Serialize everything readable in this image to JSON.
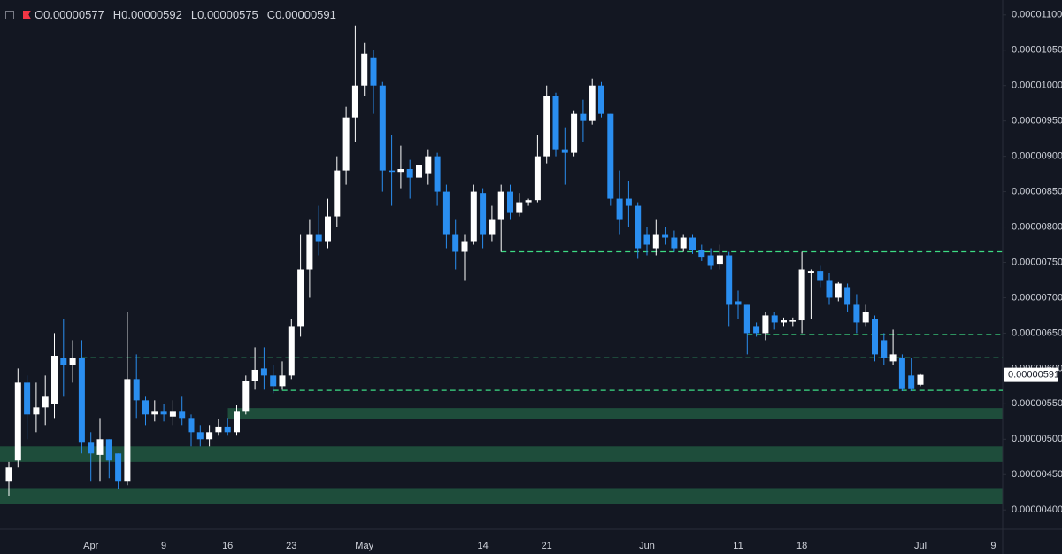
{
  "chart_data": {
    "type": "candlestick",
    "legend_values": [
      "O0.00000577",
      "H0.00000592",
      "L0.00000575",
      "C0.00000591"
    ],
    "last_price": {
      "value": 5.91e-06,
      "label": "0.00000591"
    },
    "categories": [
      null,
      null,
      null,
      null,
      null,
      null,
      null,
      null,
      null,
      "Apr",
      null,
      null,
      null,
      null,
      null,
      null,
      null,
      "9",
      null,
      null,
      null,
      null,
      null,
      null,
      "16",
      null,
      null,
      null,
      null,
      null,
      null,
      "23",
      null,
      null,
      null,
      null,
      null,
      null,
      null,
      "May",
      null,
      null,
      null,
      null,
      null,
      null,
      null,
      null,
      null,
      null,
      null,
      null,
      "14",
      null,
      null,
      null,
      null,
      null,
      null,
      "21",
      null,
      null,
      null,
      null,
      null,
      null,
      null,
      null,
      null,
      null,
      "Jun",
      null,
      null,
      null,
      null,
      null,
      null,
      null,
      null,
      null,
      "11",
      null,
      null,
      null,
      null,
      null,
      null,
      "18",
      null,
      null,
      null,
      null,
      null,
      null,
      null,
      null,
      null,
      null,
      null,
      null,
      "Jul",
      null,
      null,
      null,
      null,
      null,
      null,
      null,
      "9",
      null
    ],
    "open": [
      4.4e-06,
      4.7e-06,
      5.8e-06,
      5.35e-06,
      5.45e-06,
      5.5e-06,
      6.15e-06,
      6.05e-06,
      6.15e-06,
      4.95e-06,
      4.78e-06,
      5e-06,
      4.8e-06,
      4.4e-06,
      5.85e-06,
      5.55e-06,
      5.35e-06,
      5.4e-06,
      5.32e-06,
      5.4e-06,
      5.3e-06,
      5.1e-06,
      5e-06,
      5.1e-06,
      5.18e-06,
      5.1e-06,
      5.4e-06,
      5.82e-06,
      6e-06,
      5.9e-06,
      5.75e-06,
      5.9e-06,
      6.6e-06,
      7.4e-06,
      7.9e-06,
      7.8e-06,
      8.15e-06,
      8.8e-06,
      9.55e-06,
      1e-05,
      1.04e-05,
      1e-05,
      8.8e-06,
      8.78e-06,
      8.82e-06,
      8.7e-06,
      8.75e-06,
      9e-06,
      8.5e-06,
      7.9e-06,
      7.65e-06,
      7.8e-06,
      8.48e-06,
      7.9e-06,
      8.1e-06,
      8.5e-06,
      8.2e-06,
      8.35e-06,
      8.38e-06,
      9e-06,
      9.85e-06,
      9.1e-06,
      9.05e-06,
      9.6e-06,
      9.5e-06,
      1e-05,
      9.6e-06,
      8.4e-06,
      8.4e-06,
      8.3e-06,
      7.9e-06,
      7.7e-06,
      7.9e-06,
      7.85e-06,
      7.7e-06,
      7.85e-06,
      7.68e-06,
      7.6e-06,
      7.48e-06,
      7.6e-06,
      6.95e-06,
      6.9e-06,
      6.6e-06,
      6.5e-06,
      6.75e-06,
      6.65e-06,
      6.66e-06,
      6.68e-06,
      7.35e-06,
      7.38e-06,
      7.25e-06,
      7e-06,
      7.15e-06,
      6.9e-06,
      6.65e-06,
      6.7e-06,
      6.4e-06,
      6.1e-06,
      6.15e-06,
      5.9e-06,
      5.77e-06,
      null,
      null,
      null,
      null,
      null,
      null,
      null,
      null,
      null
    ],
    "high": [
      4.68e-06,
      6e-06,
      5.9e-06,
      5.8e-06,
      5.9e-06,
      6.5e-06,
      6.7e-06,
      6.4e-06,
      6.4e-06,
      5.1e-06,
      5.3e-06,
      5e-06,
      4.8e-06,
      6.8e-06,
      6.2e-06,
      5.6e-06,
      5.55e-06,
      5.5e-06,
      5.55e-06,
      5.6e-06,
      5.35e-06,
      5.2e-06,
      5.2e-06,
      5.28e-06,
      5.3e-06,
      5.48e-06,
      5.9e-06,
      6.3e-06,
      6.3e-06,
      6.05e-06,
      6.1e-06,
      6.7e-06,
      7.9e-06,
      8.1e-06,
      8.3e-06,
      8.4e-06,
      9e-06,
      9.7e-06,
      1.085e-05,
      1.06e-05,
      1.05e-05,
      1.005e-05,
      9.3e-06,
      9.15e-06,
      8.95e-06,
      8.95e-06,
      9.1e-06,
      9.05e-06,
      8.6e-06,
      8.1e-06,
      7.9e-06,
      8.6e-06,
      8.55e-06,
      8.3e-06,
      8.6e-06,
      8.6e-06,
      8.48e-06,
      8.4e-06,
      9.3e-06,
      1e-05,
      9.9e-06,
      9.4e-06,
      9.65e-06,
      9.8e-06,
      1.01e-05,
      1.005e-05,
      9.6e-06,
      8.8e-06,
      8.65e-06,
      8.35e-06,
      8e-06,
      8.1e-06,
      8e-06,
      7.95e-06,
      7.9e-06,
      7.9e-06,
      7.75e-06,
      7.7e-06,
      7.75e-06,
      7.65e-06,
      7.1e-06,
      6.9e-06,
      6.65e-06,
      6.8e-06,
      6.8e-06,
      6.72e-06,
      6.72e-06,
      7.65e-06,
      7.4e-06,
      7.45e-06,
      7.35e-06,
      7.22e-06,
      7.2e-06,
      7.05e-06,
      6.9e-06,
      6.75e-06,
      6.5e-06,
      6.55e-06,
      6.2e-06,
      6.15e-06,
      5.92e-06,
      null,
      null,
      null,
      null,
      null,
      null,
      null,
      null,
      null
    ],
    "low": [
      4.2e-06,
      4.6e-06,
      5e-06,
      5.1e-06,
      5.2e-06,
      5.3e-06,
      5.6e-06,
      5.8e-06,
      4.8e-06,
      4.4e-06,
      4.4e-06,
      4.45e-06,
      4.3e-06,
      4.35e-06,
      5.3e-06,
      5.2e-06,
      5.25e-06,
      5.25e-06,
      5.2e-06,
      5.2e-06,
      4.9e-06,
      4.9e-06,
      4.9e-06,
      5.05e-06,
      5.05e-06,
      5.05e-06,
      5.35e-06,
      5.7e-06,
      5.7e-06,
      5.65e-06,
      5.7e-06,
      5.85e-06,
      6.45e-06,
      7e-06,
      7.6e-06,
      7.7e-06,
      8e-06,
      8.6e-06,
      9.2e-06,
      9.85e-06,
      9.6e-06,
      8.5e-06,
      8.3e-06,
      8.55e-06,
      8.4e-06,
      8.5e-06,
      8.6e-06,
      8.3e-06,
      7.7e-06,
      7.4e-06,
      7.25e-06,
      7.75e-06,
      7.7e-06,
      7.8e-06,
      7.65e-06,
      8.1e-06,
      8.15e-06,
      8.3e-06,
      8.35e-06,
      8.9e-06,
      9e-06,
      8.6e-06,
      9e-06,
      9.2e-06,
      9.45e-06,
      9.55e-06,
      8.3e-06,
      7.9e-06,
      8e-06,
      7.55e-06,
      7.6e-06,
      7.6e-06,
      7.75e-06,
      7.65e-06,
      7.65e-06,
      7.62e-06,
      7.52e-06,
      7.4e-06,
      7.4e-06,
      6.6e-06,
      6.7e-06,
      6.2e-06,
      6.45e-06,
      6.4e-06,
      6.55e-06,
      6.6e-06,
      6.6e-06,
      6.5e-06,
      6.7e-06,
      7.15e-06,
      6.9e-06,
      6.95e-06,
      6.8e-06,
      6.5e-06,
      6.6e-06,
      6.1e-06,
      6.05e-06,
      6.05e-06,
      5.68e-06,
      5.68e-06,
      5.75e-06,
      null,
      null,
      null,
      null,
      null,
      null,
      null,
      null,
      null
    ],
    "close": [
      4.6e-06,
      5.8e-06,
      5.35e-06,
      5.45e-06,
      5.6e-06,
      6.18e-06,
      6.05e-06,
      6.15e-06,
      4.95e-06,
      4.8e-06,
      5e-06,
      4.7e-06,
      4.4e-06,
      5.85e-06,
      5.55e-06,
      5.35e-06,
      5.4e-06,
      5.35e-06,
      5.4e-06,
      5.3e-06,
      5.1e-06,
      5e-06,
      5.1e-06,
      5.18e-06,
      5.1e-06,
      5.4e-06,
      5.82e-06,
      5.98e-06,
      5.9e-06,
      5.75e-06,
      5.9e-06,
      6.6e-06,
      7.4e-06,
      7.9e-06,
      7.8e-06,
      8.15e-06,
      8.8e-06,
      9.55e-06,
      1e-05,
      1.045e-05,
      1e-05,
      8.8e-06,
      8.78e-06,
      8.82e-06,
      8.7e-06,
      8.88e-06,
      9e-06,
      8.5e-06,
      7.9e-06,
      7.65e-06,
      7.8e-06,
      8.5e-06,
      7.9e-06,
      8.1e-06,
      8.5e-06,
      8.2e-06,
      8.35e-06,
      8.38e-06,
      9e-06,
      9.85e-06,
      9.1e-06,
      9.05e-06,
      9.6e-06,
      9.5e-06,
      1e-05,
      9.6e-06,
      8.4e-06,
      8.1e-06,
      8.3e-06,
      7.7e-06,
      7.75e-06,
      7.9e-06,
      7.85e-06,
      7.7e-06,
      7.85e-06,
      7.68e-06,
      7.58e-06,
      7.45e-06,
      7.6e-06,
      6.9e-06,
      6.9e-06,
      6.5e-06,
      6.5e-06,
      6.75e-06,
      6.65e-06,
      6.68e-06,
      6.68e-06,
      7.4e-06,
      7.38e-06,
      7.25e-06,
      7e-06,
      7.2e-06,
      6.9e-06,
      6.65e-06,
      6.8e-06,
      6.2e-06,
      6.15e-06,
      6.2e-06,
      5.72e-06,
      5.72e-06,
      5.91e-06,
      null,
      null,
      null,
      null,
      null,
      null,
      null,
      null,
      null
    ],
    "up_color": "#ffffff",
    "down_color": "#2a8ef0",
    "levels": [
      7.65e-06,
      6.48e-06,
      6.15e-06,
      5.69e-06
    ],
    "level_color": "#3ddc84",
    "zones": [
      [
        5.28e-06,
        5.44e-06
      ],
      [
        4.68e-06,
        4.9e-06
      ],
      [
        4.09e-06,
        4.31e-06
      ]
    ],
    "zone_color": "#1e4d3b",
    "ylim": [
      3.74e-06,
      1.121e-05
    ],
    "yticks": [
      {
        "value": 4e-06,
        "label": "0.00000400"
      },
      {
        "value": 4.5e-06,
        "label": "0.00000450"
      },
      {
        "value": 5e-06,
        "label": "0.00000500"
      },
      {
        "value": 5.5e-06,
        "label": "0.00000550"
      },
      {
        "value": 6e-06,
        "label": "0.00000600"
      },
      {
        "value": 6.5e-06,
        "label": "0.00000650"
      },
      {
        "value": 7e-06,
        "label": "0.00000700"
      },
      {
        "value": 7.5e-06,
        "label": "0.00000750"
      },
      {
        "value": 8e-06,
        "label": "0.00000800"
      },
      {
        "value": 8.5e-06,
        "label": "0.00000850"
      },
      {
        "value": 9e-06,
        "label": "0.00000900"
      },
      {
        "value": 9.5e-06,
        "label": "0.00000950"
      },
      {
        "value": 1e-05,
        "label": "0.00001000"
      },
      {
        "value": 1.05e-05,
        "label": "0.00001050"
      },
      {
        "value": 1.1e-05,
        "label": "0.00001100"
      }
    ],
    "grid": false
  }
}
